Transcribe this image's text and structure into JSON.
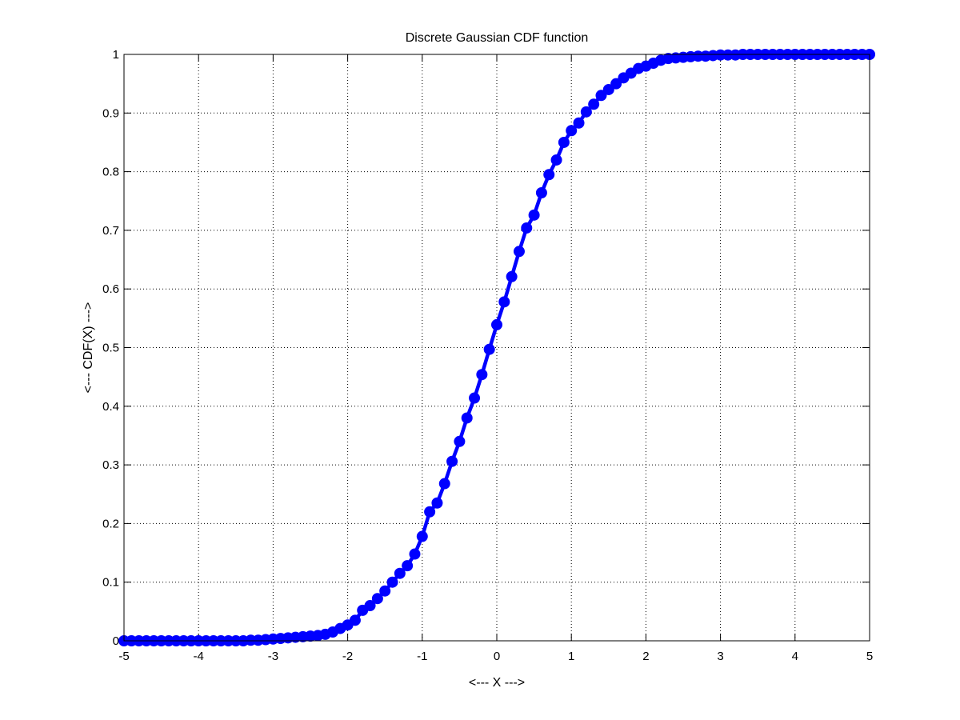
{
  "chart_data": {
    "type": "line",
    "title": "Discrete Gaussian CDF function",
    "xlabel": "<--- X --->",
    "ylabel": "<--- CDF(X) --->",
    "xlim": [
      -5,
      5
    ],
    "ylim": [
      0,
      1
    ],
    "xticks": [
      -5,
      -4,
      -3,
      -2,
      -1,
      0,
      1,
      2,
      3,
      4,
      5
    ],
    "xtick_labels": [
      "-5",
      "-4",
      "-3",
      "-2",
      "-1",
      "0",
      "1",
      "2",
      "3",
      "4",
      "5"
    ],
    "yticks": [
      0,
      0.1,
      0.2,
      0.3,
      0.4,
      0.5,
      0.6,
      0.7,
      0.8,
      0.9,
      1
    ],
    "ytick_labels": [
      "0",
      "0.1",
      "0.2",
      "0.3",
      "0.4",
      "0.5",
      "0.6",
      "0.7",
      "0.8",
      "0.9",
      "1"
    ],
    "grid": true,
    "grid_style": "dotted",
    "line_color": "#0000ff",
    "marker": "circle",
    "series": [
      {
        "x": [
          -5,
          -4.9,
          -4.8,
          -4.7,
          -4.6,
          -4.5,
          -4.4,
          -4.3,
          -4.2,
          -4.1,
          -4,
          -3.9,
          -3.8,
          -3.7,
          -3.6,
          -3.5,
          -3.4,
          -3.3,
          -3.2,
          -3.1,
          -3,
          -2.9,
          -2.8,
          -2.7,
          -2.6,
          -2.5,
          -2.4,
          -2.3,
          -2.2,
          -2.1,
          -2,
          -1.9,
          -1.8,
          -1.7,
          -1.6,
          -1.5,
          -1.4,
          -1.3,
          -1.2,
          -1.1,
          -1,
          -0.9,
          -0.8,
          -0.7,
          -0.6,
          -0.5,
          -0.4,
          -0.3,
          -0.2,
          -0.1,
          0,
          0.1,
          0.2,
          0.3,
          0.4,
          0.5,
          0.6,
          0.7,
          0.8,
          0.9,
          1,
          1.1,
          1.2,
          1.3,
          1.4,
          1.5,
          1.6,
          1.7,
          1.8,
          1.9,
          2,
          2.1,
          2.2,
          2.3,
          2.4,
          2.5,
          2.6,
          2.7,
          2.8,
          2.9,
          3,
          3.1,
          3.2,
          3.3,
          3.4,
          3.5,
          3.6,
          3.7,
          3.8,
          3.9,
          4,
          4.1,
          4.2,
          4.3,
          4.4,
          4.5,
          4.6,
          4.7,
          4.8,
          4.9,
          5
        ],
        "values": [
          0,
          0,
          0,
          0,
          0,
          0,
          0,
          0,
          0,
          0,
          0,
          0,
          0,
          0,
          0,
          0,
          0,
          0.001,
          0.001,
          0.002,
          0.003,
          0.004,
          0.005,
          0.006,
          0.007,
          0.008,
          0.009,
          0.011,
          0.015,
          0.021,
          0.027,
          0.035,
          0.052,
          0.06,
          0.072,
          0.085,
          0.1,
          0.115,
          0.128,
          0.148,
          0.178,
          0.22,
          0.235,
          0.268,
          0.306,
          0.34,
          0.38,
          0.414,
          0.454,
          0.497,
          0.539,
          0.578,
          0.621,
          0.664,
          0.704,
          0.726,
          0.764,
          0.795,
          0.82,
          0.85,
          0.87,
          0.883,
          0.902,
          0.915,
          0.93,
          0.94,
          0.95,
          0.96,
          0.968,
          0.976,
          0.98,
          0.985,
          0.99,
          0.993,
          0.994,
          0.995,
          0.996,
          0.997,
          0.997,
          0.998,
          0.999,
          0.999,
          0.999,
          1,
          1,
          1,
          1,
          1,
          1,
          1,
          1,
          1,
          1,
          1,
          1,
          1,
          1,
          1,
          1,
          1,
          1
        ]
      }
    ]
  }
}
